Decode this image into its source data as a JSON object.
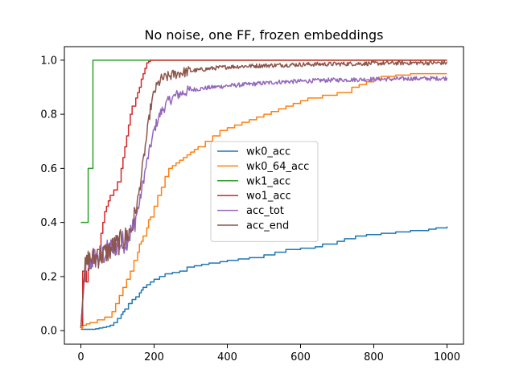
{
  "chart_data": {
    "type": "line",
    "title": "No noise, one FF, frozen embeddings",
    "xlabel": "",
    "ylabel": "",
    "xlim": [
      -45,
      1045
    ],
    "ylim": [
      -0.05,
      1.05
    ],
    "xticks": [
      0,
      200,
      400,
      600,
      800,
      1000
    ],
    "yticks": [
      0.0,
      0.2,
      0.4,
      0.6,
      0.8,
      1.0
    ],
    "xtick_labels": [
      "0",
      "200",
      "400",
      "600",
      "800",
      "1000"
    ],
    "ytick_labels": [
      "0.0",
      "0.2",
      "0.4",
      "0.6",
      "0.8",
      "1.0"
    ],
    "grid": false,
    "legend_position": "center-right",
    "series": [
      {
        "name": "wk0_acc",
        "color": "#1f77b4",
        "step": true,
        "x": [
          0,
          40,
          50,
          60,
          70,
          80,
          90,
          100,
          110,
          115,
          120,
          130,
          140,
          150,
          160,
          165,
          170,
          180,
          190,
          200,
          215,
          230,
          250,
          270,
          290,
          310,
          330,
          350,
          380,
          400,
          430,
          460,
          500,
          530,
          560,
          600,
          640,
          660,
          700,
          720,
          750,
          780,
          820,
          860,
          900,
          950,
          970,
          1000
        ],
        "y": [
          0.005,
          0.007,
          0.01,
          0.012,
          0.015,
          0.02,
          0.03,
          0.045,
          0.06,
          0.07,
          0.08,
          0.1,
          0.115,
          0.125,
          0.14,
          0.15,
          0.16,
          0.17,
          0.18,
          0.19,
          0.2,
          0.21,
          0.215,
          0.22,
          0.235,
          0.24,
          0.245,
          0.25,
          0.255,
          0.26,
          0.265,
          0.27,
          0.28,
          0.29,
          0.3,
          0.305,
          0.31,
          0.32,
          0.33,
          0.34,
          0.35,
          0.355,
          0.36,
          0.365,
          0.37,
          0.375,
          0.38,
          0.385
        ]
      },
      {
        "name": "wk0_64_acc",
        "color": "#ff7f0e",
        "step": true,
        "x": [
          0,
          5,
          15,
          25,
          45,
          65,
          85,
          95,
          105,
          115,
          125,
          135,
          145,
          155,
          160,
          165,
          170,
          180,
          185,
          190,
          200,
          210,
          220,
          230,
          240,
          250,
          260,
          270,
          280,
          290,
          300,
          310,
          320,
          340,
          360,
          380,
          400,
          420,
          440,
          460,
          480,
          500,
          520,
          540,
          560,
          580,
          600,
          620,
          660,
          700,
          740,
          760,
          780,
          800,
          820,
          860,
          900,
          1000
        ],
        "y": [
          0.01,
          0.02,
          0.025,
          0.03,
          0.04,
          0.05,
          0.07,
          0.1,
          0.13,
          0.16,
          0.19,
          0.22,
          0.26,
          0.29,
          0.32,
          0.33,
          0.35,
          0.38,
          0.41,
          0.42,
          0.46,
          0.5,
          0.53,
          0.57,
          0.6,
          0.61,
          0.62,
          0.63,
          0.64,
          0.65,
          0.66,
          0.67,
          0.68,
          0.7,
          0.72,
          0.74,
          0.75,
          0.76,
          0.77,
          0.78,
          0.79,
          0.8,
          0.81,
          0.82,
          0.83,
          0.84,
          0.85,
          0.86,
          0.87,
          0.88,
          0.9,
          0.91,
          0.92,
          0.93,
          0.94,
          0.945,
          0.95,
          0.95
        ]
      },
      {
        "name": "wk1_acc",
        "color": "#2ca02c",
        "step": true,
        "x": [
          0,
          20,
          25,
          33,
          35,
          200,
          1000
        ],
        "y": [
          0.4,
          0.6,
          0.6,
          1.0,
          1.0,
          1.0,
          1.0
        ]
      },
      {
        "name": "wo1_acc",
        "color": "#d62728",
        "step": true,
        "x": [
          0,
          5,
          15,
          20,
          28,
          38,
          45,
          55,
          60,
          65,
          70,
          75,
          80,
          90,
          100,
          110,
          115,
          120,
          125,
          130,
          135,
          140,
          150,
          155,
          160,
          165,
          170,
          175,
          180,
          185,
          190,
          1000
        ],
        "y": [
          0.02,
          0.22,
          0.18,
          0.23,
          0.25,
          0.28,
          0.3,
          0.36,
          0.4,
          0.44,
          0.46,
          0.48,
          0.5,
          0.52,
          0.55,
          0.6,
          0.64,
          0.68,
          0.72,
          0.76,
          0.8,
          0.83,
          0.86,
          0.88,
          0.9,
          0.93,
          0.95,
          0.97,
          0.99,
          0.995,
          1.0,
          1.0
        ]
      },
      {
        "name": "acc_tot",
        "color": "#9467bd",
        "step": false,
        "noise": true,
        "x": [
          0,
          10,
          20,
          40,
          60,
          80,
          100,
          120,
          140,
          150,
          160,
          170,
          180,
          190,
          200,
          210,
          220,
          230,
          240,
          260,
          280,
          300,
          330,
          360,
          400,
          450,
          500,
          550,
          600,
          650,
          700,
          750,
          800,
          850,
          900,
          950,
          1000
        ],
        "y": [
          0.01,
          0.2,
          0.25,
          0.27,
          0.28,
          0.3,
          0.32,
          0.33,
          0.37,
          0.42,
          0.47,
          0.55,
          0.62,
          0.68,
          0.74,
          0.78,
          0.81,
          0.83,
          0.85,
          0.87,
          0.88,
          0.89,
          0.895,
          0.9,
          0.905,
          0.91,
          0.915,
          0.92,
          0.922,
          0.925,
          0.927,
          0.928,
          0.93,
          0.93,
          0.932,
          0.932,
          0.933
        ]
      },
      {
        "name": "acc_end",
        "color": "#8c564b",
        "step": false,
        "noise": true,
        "x": [
          0,
          10,
          20,
          40,
          60,
          80,
          100,
          120,
          140,
          150,
          160,
          170,
          180,
          190,
          200,
          210,
          220,
          240,
          260,
          280,
          300,
          330,
          360,
          400,
          450,
          500,
          550,
          600,
          650,
          700,
          750,
          800,
          850,
          900,
          950,
          1000
        ],
        "y": [
          0.01,
          0.22,
          0.26,
          0.27,
          0.28,
          0.3,
          0.32,
          0.34,
          0.38,
          0.44,
          0.52,
          0.62,
          0.72,
          0.82,
          0.88,
          0.91,
          0.93,
          0.94,
          0.95,
          0.955,
          0.96,
          0.965,
          0.97,
          0.975,
          0.978,
          0.98,
          0.982,
          0.984,
          0.985,
          0.986,
          0.987,
          0.988,
          0.989,
          0.99,
          0.99,
          0.99
        ]
      }
    ]
  }
}
